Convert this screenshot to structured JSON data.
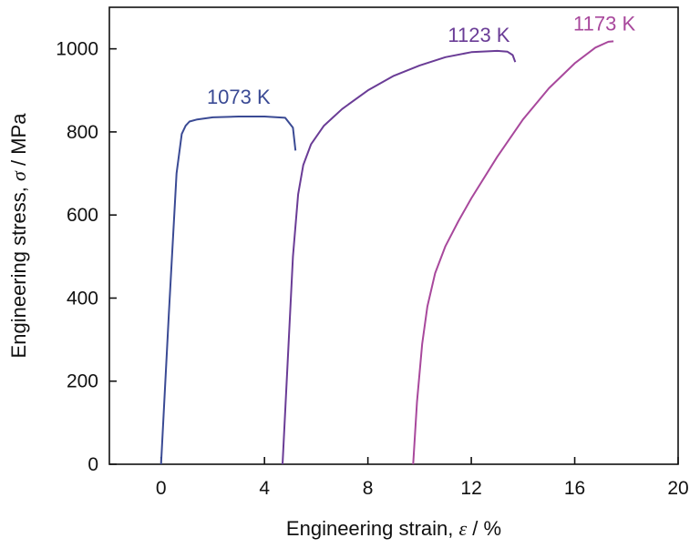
{
  "chart_data": {
    "type": "line",
    "xlabel": {
      "prefix": "Engineering strain, ",
      "symbol": "ε",
      "suffix": " / %"
    },
    "ylabel": {
      "prefix": "Engineering stress, ",
      "symbol": "σ",
      "suffix": " / MPa"
    },
    "xlim": [
      -2,
      20
    ],
    "ylim": [
      0,
      1100
    ],
    "xticks": [
      0,
      4,
      8,
      12,
      16,
      20
    ],
    "yticks": [
      0,
      200,
      400,
      600,
      800,
      1000
    ],
    "xtick_labels": [
      "0",
      "4",
      "8",
      "12",
      "16",
      "20"
    ],
    "ytick_labels": [
      "0",
      "200",
      "400",
      "600",
      "800",
      "1000"
    ],
    "grid": false,
    "series": [
      {
        "name": "1073 K",
        "color": "#3a4a94",
        "x": [
          0.0,
          0.3,
          0.6,
          0.8,
          0.95,
          1.1,
          1.4,
          2.0,
          3.0,
          4.0,
          4.8,
          5.1,
          5.2
        ],
        "y": [
          0,
          360,
          700,
          795,
          815,
          825,
          830,
          835,
          837,
          837,
          834,
          810,
          755
        ]
      },
      {
        "name": "1123 K",
        "color": "#6a3c96",
        "x": [
          4.7,
          4.9,
          5.1,
          5.3,
          5.5,
          5.8,
          6.3,
          7.0,
          8.0,
          9.0,
          10.0,
          11.0,
          12.0,
          13.0,
          13.4,
          13.6,
          13.7
        ],
        "y": [
          0,
          250,
          500,
          650,
          720,
          770,
          815,
          855,
          900,
          935,
          960,
          980,
          992,
          995,
          993,
          985,
          968
        ]
      },
      {
        "name": "1173 K",
        "color": "#a8489c",
        "x": [
          9.75,
          9.9,
          10.1,
          10.3,
          10.6,
          11.0,
          11.5,
          12.0,
          13.0,
          14.0,
          15.0,
          16.0,
          16.8,
          17.3,
          17.5
        ],
        "y": [
          0,
          150,
          290,
          380,
          460,
          525,
          585,
          640,
          740,
          830,
          905,
          965,
          1003,
          1017,
          1018
        ]
      }
    ]
  }
}
